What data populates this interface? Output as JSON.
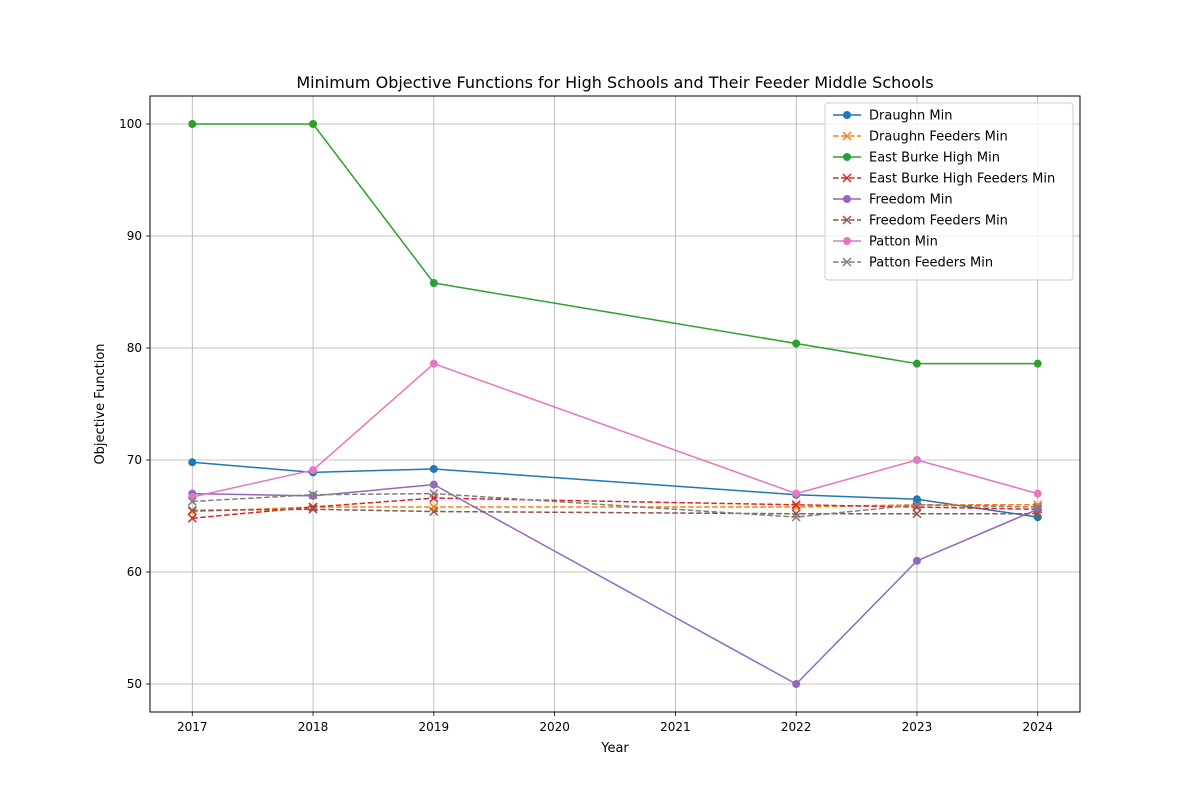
{
  "chart_data": {
    "type": "line",
    "title": "Minimum Objective Functions for High Schools and Their Feeder Middle Schools",
    "xlabel": "Year",
    "ylabel": "Objective Function",
    "xlim": [
      2016.65,
      2024.35
    ],
    "ylim": [
      47.5,
      102.5
    ],
    "xticks": [
      2017,
      2018,
      2019,
      2020,
      2021,
      2022,
      2023,
      2024
    ],
    "yticks": [
      50,
      60,
      70,
      80,
      90,
      100
    ],
    "grid": true,
    "legend_position": "top-right",
    "series": [
      {
        "name": "Draughn Min",
        "color": "#1f77b4",
        "style": "solid",
        "marker": "circle",
        "x": [
          2017,
          2018,
          2019,
          2022,
          2023,
          2024
        ],
        "y": [
          69.8,
          68.9,
          69.2,
          66.9,
          66.5,
          64.9
        ]
      },
      {
        "name": "Draughn Feeders Min",
        "color": "#ff7f0e",
        "style": "dashed",
        "marker": "x",
        "x": [
          2017,
          2018,
          2019,
          2022,
          2023,
          2024
        ],
        "y": [
          65.4,
          65.8,
          65.8,
          65.8,
          66.0,
          66.0
        ]
      },
      {
        "name": "East Burke High Min",
        "color": "#2ca02c",
        "style": "solid",
        "marker": "circle",
        "x": [
          2017,
          2018,
          2019,
          2022,
          2023,
          2024
        ],
        "y": [
          100.0,
          100.0,
          85.8,
          80.4,
          78.6,
          78.6
        ]
      },
      {
        "name": "East Burke High Feeders Min",
        "color": "#d62728",
        "style": "dashed",
        "marker": "x",
        "x": [
          2017,
          2018,
          2019,
          2022,
          2023,
          2024
        ],
        "y": [
          64.8,
          65.8,
          66.6,
          66.0,
          65.8,
          65.6
        ]
      },
      {
        "name": "Freedom Min",
        "color": "#9467bd",
        "style": "solid",
        "marker": "circle",
        "x": [
          2017,
          2018,
          2019,
          2022,
          2023,
          2024
        ],
        "y": [
          67.0,
          66.8,
          67.8,
          50.0,
          61.0,
          65.6
        ]
      },
      {
        "name": "Freedom Feeders Min",
        "color": "#8c564b",
        "style": "dashed",
        "marker": "x",
        "x": [
          2017,
          2018,
          2019,
          2022,
          2023,
          2024
        ],
        "y": [
          65.5,
          65.6,
          65.4,
          65.2,
          65.2,
          65.2
        ]
      },
      {
        "name": "Patton Min",
        "color": "#e377c2",
        "style": "solid",
        "marker": "circle",
        "x": [
          2017,
          2018,
          2019,
          2022,
          2023,
          2024
        ],
        "y": [
          66.7,
          69.1,
          78.6,
          67.0,
          70.0,
          67.0
        ]
      },
      {
        "name": "Patton Feeders Min",
        "color": "#7f7f7f",
        "style": "dashed",
        "marker": "x",
        "x": [
          2017,
          2018,
          2019,
          2022,
          2023,
          2024
        ],
        "y": [
          66.3,
          66.9,
          67.0,
          64.9,
          66.0,
          65.8
        ]
      }
    ]
  }
}
